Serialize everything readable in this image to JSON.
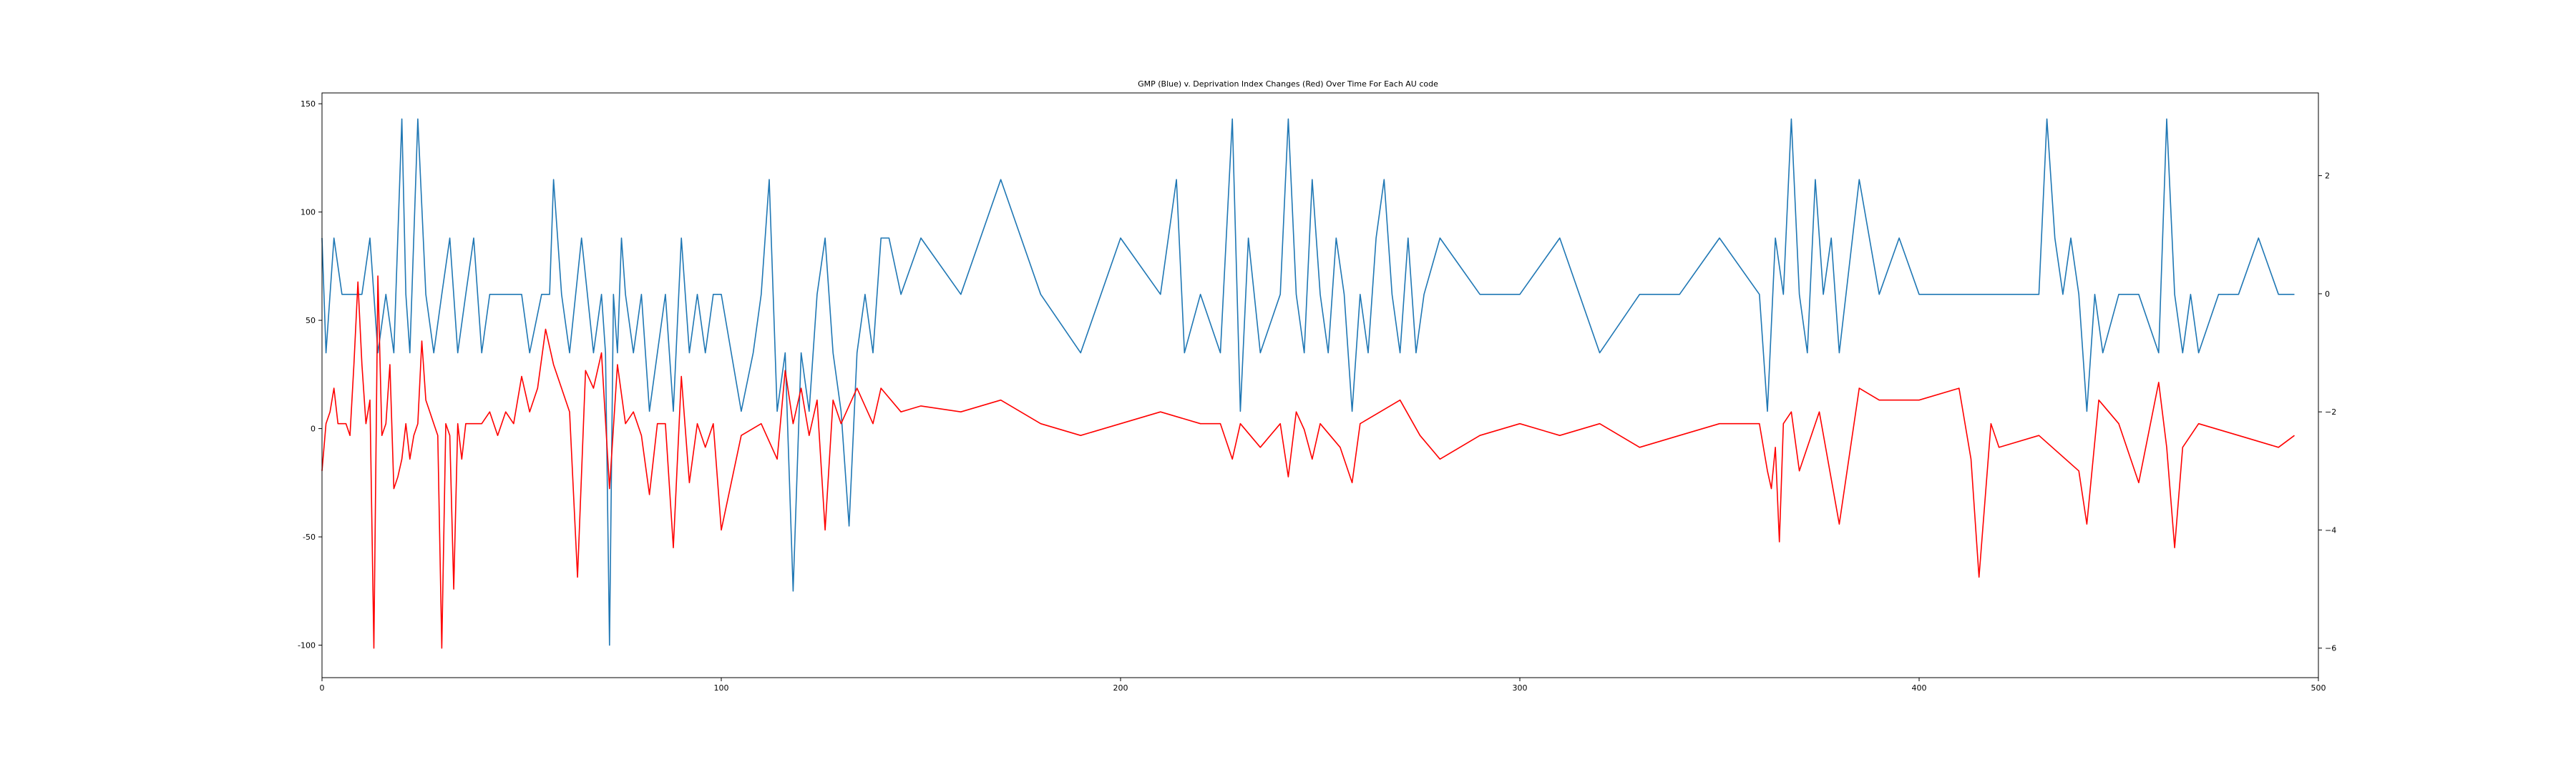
{
  "chart_data": {
    "type": "line",
    "title": "GMP (Blue) v. Deprivation Index Changes (Red) Over Time For Each AU code",
    "xlim": [
      0,
      500
    ],
    "y_left_lim": [
      -115,
      155
    ],
    "y_right_lim": [
      -6.5,
      3.4
    ],
    "x_ticks": [
      0,
      100,
      200,
      300,
      400,
      500
    ],
    "y_left_ticks": [
      -100,
      -50,
      0,
      50,
      100,
      150
    ],
    "y_right_ticks": [
      -6,
      -4,
      -2,
      0,
      2
    ],
    "grid": false,
    "series": [
      {
        "color": "#1f77b4",
        "axis": "left",
        "x": [
          0,
          1,
          3,
          5,
          10,
          12,
          14,
          16,
          18,
          20,
          21,
          22,
          24,
          26,
          28,
          30,
          32,
          34,
          36,
          38,
          40,
          42,
          45,
          50,
          52,
          55,
          57,
          58,
          60,
          62,
          65,
          68,
          70,
          71,
          72,
          73,
          74,
          75,
          76,
          78,
          80,
          82,
          84,
          86,
          88,
          90,
          92,
          94,
          96,
          98,
          100,
          105,
          108,
          110,
          112,
          114,
          116,
          118,
          120,
          122,
          124,
          126,
          128,
          130,
          132,
          134,
          136,
          138,
          140,
          142,
          145,
          150,
          160,
          170,
          180,
          190,
          200,
          210,
          214,
          216,
          220,
          225,
          228,
          230,
          232,
          235,
          240,
          242,
          244,
          246,
          248,
          250,
          252,
          254,
          256,
          258,
          260,
          262,
          264,
          266,
          268,
          270,
          272,
          274,
          276,
          280,
          290,
          300,
          310,
          320,
          330,
          340,
          350,
          360,
          362,
          364,
          366,
          368,
          370,
          372,
          374,
          376,
          378,
          380,
          385,
          390,
          395,
          400,
          410,
          420,
          430,
          432,
          434,
          436,
          438,
          440,
          442,
          444,
          446,
          450,
          455,
          460,
          462,
          464,
          466,
          468,
          470,
          475,
          480,
          485,
          490,
          494
        ],
        "values": [
          88,
          35,
          88,
          62,
          62,
          88,
          35,
          62,
          35,
          143,
          62,
          35,
          143,
          62,
          35,
          62,
          88,
          35,
          62,
          88,
          35,
          62,
          62,
          62,
          35,
          62,
          62,
          115,
          62,
          35,
          88,
          35,
          62,
          35,
          -100,
          62,
          35,
          88,
          62,
          35,
          62,
          8,
          35,
          62,
          8,
          88,
          35,
          62,
          35,
          62,
          62,
          8,
          35,
          62,
          115,
          8,
          35,
          -75,
          35,
          8,
          62,
          88,
          35,
          8,
          -45,
          35,
          62,
          35,
          88,
          88,
          62,
          88,
          62,
          115,
          62,
          35,
          88,
          62,
          115,
          35,
          62,
          35,
          143,
          8,
          88,
          35,
          62,
          143,
          62,
          35,
          115,
          62,
          35,
          88,
          62,
          8,
          62,
          35,
          88,
          115,
          62,
          35,
          88,
          35,
          62,
          88,
          62,
          62,
          88,
          35,
          62,
          62,
          88,
          62,
          8,
          88,
          62,
          143,
          62,
          35,
          115,
          62,
          88,
          35,
          115,
          62,
          88,
          62,
          62,
          62,
          62,
          143,
          88,
          62,
          88,
          62,
          8,
          62,
          35,
          62,
          62,
          35,
          143,
          62,
          35,
          62,
          35,
          62,
          62,
          88,
          62,
          62
        ]
      },
      {
        "color": "#ff0000",
        "axis": "right",
        "x": [
          0,
          1,
          2,
          3,
          4,
          5,
          6,
          7,
          8,
          9,
          10,
          11,
          12,
          13,
          14,
          15,
          16,
          17,
          18,
          19,
          20,
          21,
          22,
          23,
          24,
          25,
          26,
          27,
          28,
          29,
          30,
          31,
          32,
          33,
          34,
          35,
          36,
          38,
          40,
          42,
          44,
          46,
          48,
          50,
          52,
          54,
          56,
          58,
          60,
          62,
          64,
          66,
          68,
          70,
          72,
          74,
          76,
          78,
          80,
          82,
          84,
          86,
          88,
          90,
          92,
          94,
          96,
          98,
          100,
          105,
          110,
          114,
          116,
          118,
          120,
          122,
          124,
          126,
          128,
          130,
          134,
          138,
          140,
          145,
          150,
          160,
          170,
          180,
          190,
          200,
          210,
          220,
          225,
          228,
          230,
          235,
          240,
          242,
          244,
          246,
          248,
          250,
          255,
          258,
          260,
          265,
          270,
          275,
          280,
          290,
          300,
          310,
          320,
          330,
          340,
          350,
          355,
          360,
          362,
          363,
          364,
          365,
          366,
          368,
          370,
          375,
          380,
          385,
          390,
          400,
          410,
          413,
          415,
          418,
          420,
          430,
          440,
          442,
          445,
          450,
          455,
          460,
          462,
          464,
          466,
          470,
          480,
          490,
          494
        ],
        "values": [
          -3.0,
          -2.2,
          -2.0,
          -1.6,
          -2.2,
          -2.2,
          -2.2,
          -2.4,
          -1.2,
          0.2,
          -1.2,
          -2.2,
          -1.8,
          -6.0,
          0.3,
          -2.4,
          -2.2,
          -1.2,
          -3.3,
          -3.1,
          -2.8,
          -2.2,
          -2.8,
          -2.4,
          -2.2,
          -0.8,
          -1.8,
          -2.0,
          -2.2,
          -2.4,
          -6.0,
          -2.2,
          -2.4,
          -5.0,
          -2.2,
          -2.8,
          -2.2,
          -2.2,
          -2.2,
          -2.0,
          -2.4,
          -2.0,
          -2.2,
          -1.4,
          -2.0,
          -1.6,
          -0.6,
          -1.2,
          -1.6,
          -2.0,
          -4.8,
          -1.3,
          -1.6,
          -1.0,
          -3.3,
          -1.2,
          -2.2,
          -2.0,
          -2.4,
          -3.4,
          -2.2,
          -2.2,
          -4.3,
          -1.4,
          -3.2,
          -2.2,
          -2.6,
          -2.2,
          -4.0,
          -2.4,
          -2.2,
          -2.8,
          -1.3,
          -2.2,
          -1.6,
          -2.4,
          -1.8,
          -4.0,
          -1.8,
          -2.2,
          -1.6,
          -2.2,
          -1.6,
          -2.0,
          -1.9,
          -2.0,
          -1.8,
          -2.2,
          -2.4,
          -2.2,
          -2.0,
          -2.2,
          -2.2,
          -2.8,
          -2.2,
          -2.6,
          -2.2,
          -3.1,
          -2.0,
          -2.3,
          -2.8,
          -2.2,
          -2.6,
          -3.2,
          -2.2,
          -2.0,
          -1.8,
          -2.4,
          -2.8,
          -2.4,
          -2.2,
          -2.4,
          -2.2,
          -2.6,
          -2.4,
          -2.2,
          -2.2,
          -2.2,
          -3.0,
          -3.3,
          -2.6,
          -4.2,
          -2.2,
          -2.0,
          -3.0,
          -2.0,
          -3.9,
          -1.6,
          -1.8,
          -1.8,
          -1.6,
          -2.8,
          -4.8,
          -2.2,
          -2.6,
          -2.4,
          -3.0,
          -3.9,
          -1.8,
          -2.2,
          -3.2,
          -1.5,
          -2.6,
          -4.3,
          -2.6,
          -2.2,
          -2.4,
          -2.6,
          -2.4
        ]
      }
    ]
  }
}
